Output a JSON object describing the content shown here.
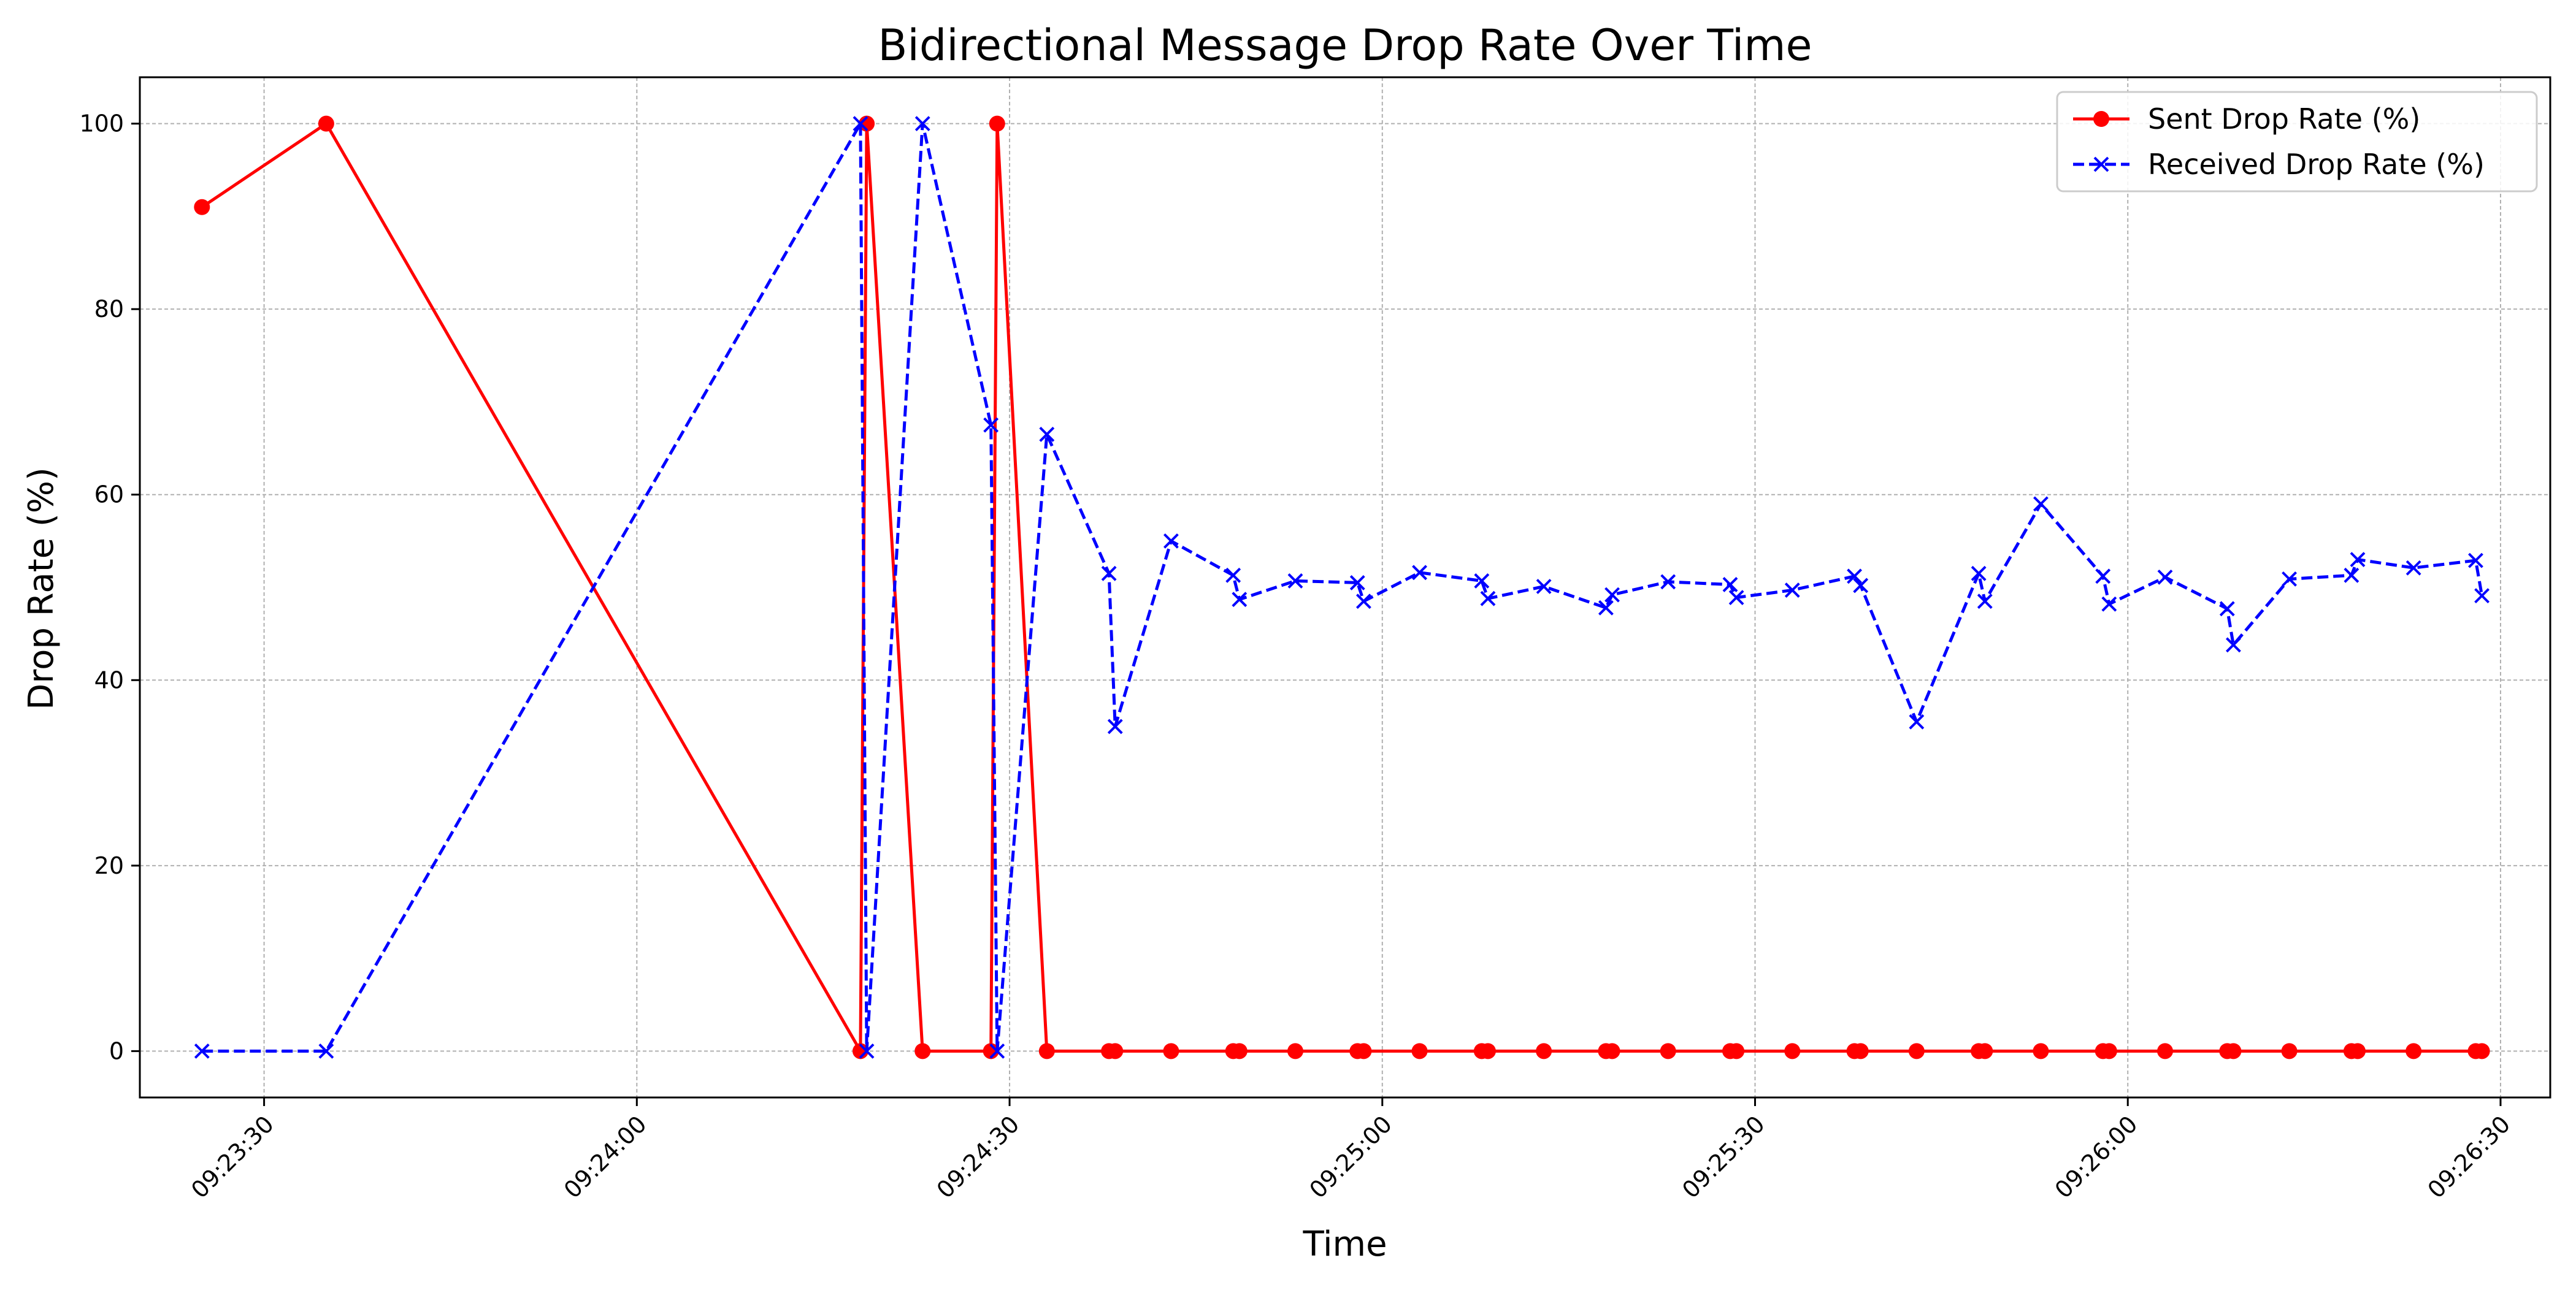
{
  "chart_data": {
    "type": "line",
    "title": "Bidirectional Message Drop Rate Over Time",
    "xlabel": "Time",
    "ylabel": "Drop Rate (%)",
    "xlim": [
      "09:23:20",
      "09:26:34"
    ],
    "ylim": [
      -5,
      105
    ],
    "x_ticks": [
      "09:23:30",
      "09:24:00",
      "09:24:30",
      "09:25:00",
      "09:25:30",
      "09:26:00",
      "09:26:30"
    ],
    "y_ticks": [
      0,
      20,
      40,
      60,
      80,
      100
    ],
    "grid": true,
    "legend_position": "upper-right",
    "series": [
      {
        "name": "Sent Drop Rate (%)",
        "color": "#ff0000",
        "line_style": "solid",
        "marker": "circle",
        "points": [
          [
            "09:23:25",
            91
          ],
          [
            "09:23:35",
            100
          ],
          [
            "09:24:18",
            0
          ],
          [
            "09:24:18.5",
            100
          ],
          [
            "09:24:23",
            0
          ],
          [
            "09:24:28.5",
            0
          ],
          [
            "09:24:29",
            100
          ],
          [
            "09:24:33",
            0
          ],
          [
            "09:24:38",
            0
          ],
          [
            "09:24:38.5",
            0
          ],
          [
            "09:24:43",
            0
          ],
          [
            "09:24:48",
            0
          ],
          [
            "09:24:48.5",
            0
          ],
          [
            "09:24:53",
            0
          ],
          [
            "09:24:58",
            0
          ],
          [
            "09:24:58.5",
            0
          ],
          [
            "09:25:03",
            0
          ],
          [
            "09:25:08",
            0
          ],
          [
            "09:25:08.5",
            0
          ],
          [
            "09:25:13",
            0
          ],
          [
            "09:25:18",
            0
          ],
          [
            "09:25:18.5",
            0
          ],
          [
            "09:25:23",
            0
          ],
          [
            "09:25:28",
            0
          ],
          [
            "09:25:28.5",
            0
          ],
          [
            "09:25:33",
            0
          ],
          [
            "09:25:38",
            0
          ],
          [
            "09:25:38.5",
            0
          ],
          [
            "09:25:43",
            0
          ],
          [
            "09:25:48",
            0
          ],
          [
            "09:25:48.5",
            0
          ],
          [
            "09:25:53",
            0
          ],
          [
            "09:25:58",
            0
          ],
          [
            "09:25:58.5",
            0
          ],
          [
            "09:26:03",
            0
          ],
          [
            "09:26:08",
            0
          ],
          [
            "09:26:08.5",
            0
          ],
          [
            "09:26:13",
            0
          ],
          [
            "09:26:18",
            0
          ],
          [
            "09:26:18.5",
            0
          ],
          [
            "09:26:23",
            0
          ],
          [
            "09:26:28",
            0
          ],
          [
            "09:26:28.5",
            0
          ]
        ]
      },
      {
        "name": "Received Drop Rate (%)",
        "color": "#0000ff",
        "line_style": "dashed",
        "marker": "x",
        "points": [
          [
            "09:23:25",
            0
          ],
          [
            "09:23:35",
            0
          ],
          [
            "09:24:18",
            100
          ],
          [
            "09:24:18.5",
            0
          ],
          [
            "09:24:23",
            100
          ],
          [
            "09:24:28.5",
            67.5
          ],
          [
            "09:24:29",
            0
          ],
          [
            "09:24:33",
            66.5
          ],
          [
            "09:24:38",
            51.5
          ],
          [
            "09:24:38.5",
            35
          ],
          [
            "09:24:43",
            55
          ],
          [
            "09:24:48",
            51.3
          ],
          [
            "09:24:48.5",
            48.7
          ],
          [
            "09:24:53",
            50.7
          ],
          [
            "09:24:58",
            50.5
          ],
          [
            "09:24:58.5",
            48.5
          ],
          [
            "09:25:03",
            51.6
          ],
          [
            "09:25:08",
            50.7
          ],
          [
            "09:25:08.5",
            48.8
          ],
          [
            "09:25:13",
            50.1
          ],
          [
            "09:25:18",
            47.8
          ],
          [
            "09:25:18.5",
            49.2
          ],
          [
            "09:25:23",
            50.6
          ],
          [
            "09:25:28",
            50.3
          ],
          [
            "09:25:28.5",
            48.9
          ],
          [
            "09:25:33",
            49.7
          ],
          [
            "09:25:38",
            51.2
          ],
          [
            "09:25:38.5",
            50.2
          ],
          [
            "09:25:43",
            35.5
          ],
          [
            "09:25:48",
            51.5
          ],
          [
            "09:25:48.5",
            48.5
          ],
          [
            "09:25:53",
            59
          ],
          [
            "09:25:58",
            51.2
          ],
          [
            "09:25:58.5",
            48.2
          ],
          [
            "09:26:03",
            51.1
          ],
          [
            "09:26:08",
            47.7
          ],
          [
            "09:26:08.5",
            43.8
          ],
          [
            "09:26:13",
            50.9
          ],
          [
            "09:26:18",
            51.3
          ],
          [
            "09:26:18.5",
            53
          ],
          [
            "09:26:23",
            52.1
          ],
          [
            "09:26:28",
            52.9
          ],
          [
            "09:26:28.5",
            49.1
          ]
        ]
      }
    ]
  }
}
